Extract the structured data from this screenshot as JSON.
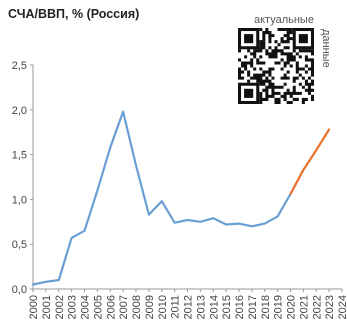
{
  "chart_data": {
    "type": "line",
    "title": "СЧА/ВВП, % (Россия)",
    "xlabel": "",
    "ylabel": "",
    "ylim": [
      0,
      2.5
    ],
    "yticks": [
      "0,0",
      "0,5",
      "1,0",
      "1,5",
      "2,0",
      "2,5"
    ],
    "x": [
      "2000",
      "2001",
      "2002",
      "2003",
      "2004",
      "2005",
      "2006",
      "2007",
      "2008",
      "2009",
      "2010",
      "2011",
      "2012",
      "2013",
      "2014",
      "2015",
      "2016",
      "2017",
      "2018",
      "2019",
      "2020",
      "2021",
      "2022",
      "2023",
      "2024"
    ],
    "series": [
      {
        "name": "",
        "color": "#6a9fd4",
        "x": [
          "2000",
          "2001",
          "2002",
          "2003",
          "2004",
          "2005",
          "2006",
          "2007",
          "2008",
          "2009",
          "2010",
          "2011",
          "2012",
          "2013",
          "2014",
          "2015",
          "2016",
          "2017",
          "2018",
          "2019",
          "2020"
        ],
        "values": [
          0.05,
          0.08,
          0.1,
          0.57,
          0.65,
          1.1,
          1.58,
          1.98,
          1.38,
          0.83,
          0.98,
          0.74,
          0.77,
          0.75,
          0.79,
          0.72,
          0.73,
          0.7,
          0.73,
          0.81,
          1.06
        ]
      },
      {
        "name": "",
        "color": "#e8702a",
        "x": [
          "2020",
          "2021",
          "2022",
          "2023"
        ],
        "values": [
          1.06,
          1.33,
          1.55,
          1.78
        ]
      }
    ],
    "grid": false,
    "legend": "none"
  },
  "qr": {
    "caption_line1": "актуальные",
    "caption_line2": "данные",
    "icon": "qr-code-icon"
  },
  "colors": {
    "axis": "#999999",
    "tick_text": "#444444",
    "history_line": "#6a9fd4",
    "forecast_line": "#e8702a"
  }
}
